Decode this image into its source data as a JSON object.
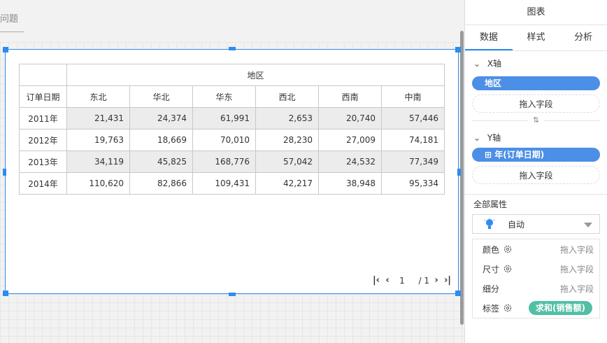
{
  "canvas": {
    "title_stub": "问题"
  },
  "table": {
    "row_header": "订单日期",
    "col_group_header": "地区",
    "columns": [
      "东北",
      "华北",
      "华东",
      "西北",
      "西南",
      "中南"
    ],
    "rows": [
      {
        "label": "2011年",
        "values": [
          "21,431",
          "24,374",
          "61,991",
          "2,653",
          "20,740",
          "57,446"
        ]
      },
      {
        "label": "2012年",
        "values": [
          "19,763",
          "18,669",
          "70,010",
          "28,230",
          "27,009",
          "74,181"
        ]
      },
      {
        "label": "2013年",
        "values": [
          "34,119",
          "45,825",
          "168,776",
          "57,042",
          "24,532",
          "77,349"
        ]
      },
      {
        "label": "2014年",
        "values": [
          "110,620",
          "82,866",
          "109,431",
          "42,217",
          "38,948",
          "95,334"
        ]
      }
    ]
  },
  "pager": {
    "current": "1",
    "total": "/ 1"
  },
  "panel": {
    "title": "图表",
    "tabs": [
      "数据",
      "样式",
      "分析"
    ],
    "x_axis": {
      "label": "X轴",
      "field": "地区",
      "drop": "拖入字段"
    },
    "y_axis": {
      "label": "Y轴",
      "field": "⊞ 年(订单日期)",
      "drop": "拖入字段"
    },
    "all_props": "全部属性",
    "mark_type": "自动",
    "props": [
      {
        "name": "颜色",
        "value": "拖入字段"
      },
      {
        "name": "尺寸",
        "value": "拖入字段"
      },
      {
        "name": "细分",
        "value": "拖入字段"
      },
      {
        "name": "标签",
        "value": "求和(销售额)"
      }
    ],
    "colors": {
      "accent": "#2d8cf0",
      "pill_blue": "#4c8fe6",
      "pill_green": "#52bfa5"
    }
  }
}
